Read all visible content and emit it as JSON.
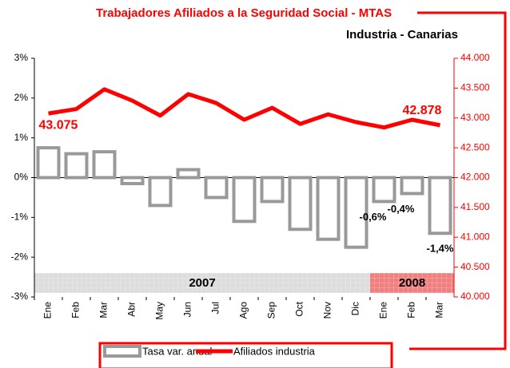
{
  "chart_data": {
    "type": "bar-line",
    "title": "Trabajadores Afiliados a la Seguridad Social - MTAS",
    "subtitle": "Industria - Canarias",
    "categories": [
      "Ene",
      "Feb",
      "Mar",
      "Abr",
      "May",
      "Jun",
      "Jul",
      "Ago",
      "Sep",
      "Oct",
      "Nov",
      "Dic",
      "Ene",
      "Feb",
      "Mar"
    ],
    "series": [
      {
        "name": "Tasa var. anual",
        "type": "bar",
        "color": "#999999",
        "values": [
          0.75,
          0.6,
          0.65,
          -0.15,
          -0.7,
          0.2,
          -0.5,
          -1.1,
          -0.6,
          -1.3,
          -1.55,
          -1.75,
          -0.6,
          -0.4,
          -1.4
        ],
        "value_labels": [
          null,
          null,
          null,
          null,
          null,
          null,
          null,
          null,
          null,
          null,
          null,
          null,
          "-0,6%",
          "-0,4%",
          "-1,4%"
        ]
      },
      {
        "name": "Afiliados industria",
        "type": "line",
        "axis": "y2",
        "color": "#ff0000",
        "values": [
          43075,
          43150,
          43480,
          43290,
          43040,
          43400,
          43250,
          42970,
          43170,
          42900,
          43060,
          42930,
          42840,
          42970,
          42878
        ],
        "value_labels": [
          "43.075",
          null,
          null,
          null,
          null,
          null,
          null,
          null,
          null,
          null,
          null,
          null,
          null,
          null,
          "42.878"
        ]
      }
    ],
    "ylim": [
      -3,
      3
    ],
    "yticks": [
      {
        "value": -3,
        "label": "-3%"
      },
      {
        "value": -2,
        "label": "-2%"
      },
      {
        "value": -1,
        "label": "-1%"
      },
      {
        "value": 0,
        "label": "0%"
      },
      {
        "value": 1,
        "label": "1%"
      },
      {
        "value": 2,
        "label": "2%"
      },
      {
        "value": 3,
        "label": "3%"
      }
    ],
    "y2lim": [
      40000,
      44000
    ],
    "y2ticks": [
      {
        "value": 40000,
        "label": "40.000"
      },
      {
        "value": 40500,
        "label": "40.500"
      },
      {
        "value": 41000,
        "label": "41.000"
      },
      {
        "value": 41500,
        "label": "41.500"
      },
      {
        "value": 42000,
        "label": "42.000"
      },
      {
        "value": 42500,
        "label": "42.500"
      },
      {
        "value": 43000,
        "label": "43.000"
      },
      {
        "value": 43500,
        "label": "43.500"
      },
      {
        "value": 44000,
        "label": "44.000"
      }
    ],
    "periods": [
      {
        "label": "2007",
        "span": 12,
        "color": "#dddddd"
      },
      {
        "label": "2008",
        "span": 3,
        "color": "#f08080"
      }
    ]
  }
}
